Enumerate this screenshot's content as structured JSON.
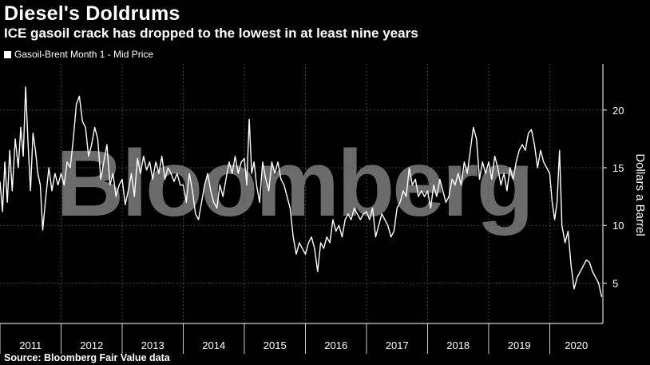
{
  "title": "Diesel's Doldrums",
  "subtitle": "ICE gasoil crack has dropped to the lowest in at least nine years",
  "source": "Source: Bloomberg Fair Value data",
  "watermark": "Bloomberg",
  "chart_data": {
    "type": "line",
    "title": "Diesel's Doldrums",
    "subtitle": "ICE gasoil crack has dropped to the lowest in at least nine years",
    "ylabel": "Dollars a Barrel",
    "xlabel": "",
    "ylim": [
      1.5,
      24
    ],
    "yticks": [
      5,
      10,
      15,
      20
    ],
    "xlim": [
      2011.0,
      2020.87
    ],
    "xticks": [
      "2011",
      "2012",
      "2013",
      "2014",
      "2015",
      "2016",
      "2017",
      "2018",
      "2019",
      "2020"
    ],
    "grid": true,
    "legend_position": "top-left",
    "colors": {
      "series": "#ffffff",
      "background": "#000000",
      "grid": "#555555"
    },
    "series": [
      {
        "name": "Gasoil-Brent Month 1 - Mid Price",
        "points": [
          [
            2011.0,
            13.8
          ],
          [
            2011.04,
            11.2
          ],
          [
            2011.08,
            15.5
          ],
          [
            2011.12,
            12.0
          ],
          [
            2011.16,
            16.5
          ],
          [
            2011.2,
            13.0
          ],
          [
            2011.25,
            17.5
          ],
          [
            2011.3,
            15.0
          ],
          [
            2011.34,
            18.5
          ],
          [
            2011.38,
            16.0
          ],
          [
            2011.42,
            22.0
          ],
          [
            2011.46,
            17.0
          ],
          [
            2011.5,
            13.0
          ],
          [
            2011.54,
            18.0
          ],
          [
            2011.58,
            16.5
          ],
          [
            2011.62,
            14.5
          ],
          [
            2011.66,
            13.5
          ],
          [
            2011.7,
            9.6
          ],
          [
            2011.75,
            12.5
          ],
          [
            2011.8,
            15.0
          ],
          [
            2011.85,
            13.0
          ],
          [
            2011.9,
            14.5
          ],
          [
            2011.95,
            13.5
          ],
          [
            2012.0,
            14.5
          ],
          [
            2012.05,
            13.5
          ],
          [
            2012.1,
            15.5
          ],
          [
            2012.15,
            15.0
          ],
          [
            2012.2,
            17.5
          ],
          [
            2012.25,
            20.5
          ],
          [
            2012.3,
            21.2
          ],
          [
            2012.35,
            19.0
          ],
          [
            2012.4,
            18.5
          ],
          [
            2012.45,
            16.0
          ],
          [
            2012.5,
            17.0
          ],
          [
            2012.55,
            18.5
          ],
          [
            2012.6,
            17.5
          ],
          [
            2012.65,
            14.0
          ],
          [
            2012.7,
            15.5
          ],
          [
            2012.75,
            17.0
          ],
          [
            2012.8,
            13.5
          ],
          [
            2012.85,
            14.5
          ],
          [
            2012.9,
            12.5
          ],
          [
            2012.95,
            13.5
          ],
          [
            2013.0,
            14.0
          ],
          [
            2013.05,
            11.8
          ],
          [
            2013.1,
            13.0
          ],
          [
            2013.15,
            14.5
          ],
          [
            2013.2,
            12.5
          ],
          [
            2013.25,
            15.8
          ],
          [
            2013.3,
            14.5
          ],
          [
            2013.35,
            16.0
          ],
          [
            2013.4,
            14.8
          ],
          [
            2013.45,
            15.5
          ],
          [
            2013.5,
            14.0
          ],
          [
            2013.55,
            15.5
          ],
          [
            2013.6,
            14.5
          ],
          [
            2013.65,
            16.0
          ],
          [
            2013.7,
            14.0
          ],
          [
            2013.75,
            15.0
          ],
          [
            2013.8,
            14.5
          ],
          [
            2013.85,
            13.8
          ],
          [
            2013.9,
            14.5
          ],
          [
            2013.95,
            13.5
          ],
          [
            2014.0,
            13.5
          ],
          [
            2014.05,
            12.0
          ],
          [
            2014.1,
            14.5
          ],
          [
            2014.15,
            13.0
          ],
          [
            2014.2,
            11.0
          ],
          [
            2014.25,
            10.5
          ],
          [
            2014.3,
            12.0
          ],
          [
            2014.35,
            13.5
          ],
          [
            2014.4,
            14.5
          ],
          [
            2014.45,
            13.0
          ],
          [
            2014.5,
            12.0
          ],
          [
            2014.55,
            11.5
          ],
          [
            2014.6,
            13.5
          ],
          [
            2014.65,
            12.5
          ],
          [
            2014.7,
            14.0
          ],
          [
            2014.75,
            15.5
          ],
          [
            2014.8,
            14.5
          ],
          [
            2014.85,
            16.0
          ],
          [
            2014.9,
            14.5
          ],
          [
            2014.95,
            15.5
          ],
          [
            2015.0,
            15.8
          ],
          [
            2015.04,
            13.5
          ],
          [
            2015.08,
            19.2
          ],
          [
            2015.12,
            14.5
          ],
          [
            2015.16,
            15.5
          ],
          [
            2015.2,
            13.5
          ],
          [
            2015.25,
            12.0
          ],
          [
            2015.3,
            15.5
          ],
          [
            2015.35,
            14.0
          ],
          [
            2015.4,
            13.0
          ],
          [
            2015.45,
            15.5
          ],
          [
            2015.5,
            14.5
          ],
          [
            2015.55,
            15.5
          ],
          [
            2015.6,
            14.0
          ],
          [
            2015.65,
            13.5
          ],
          [
            2015.7,
            12.5
          ],
          [
            2015.75,
            11.5
          ],
          [
            2015.8,
            9.0
          ],
          [
            2015.85,
            7.5
          ],
          [
            2015.9,
            8.5
          ],
          [
            2015.95,
            8.0
          ],
          [
            2016.0,
            7.5
          ],
          [
            2016.05,
            8.5
          ],
          [
            2016.1,
            9.0
          ],
          [
            2016.15,
            8.0
          ],
          [
            2016.2,
            6.0
          ],
          [
            2016.25,
            8.5
          ],
          [
            2016.3,
            8.0
          ],
          [
            2016.35,
            9.0
          ],
          [
            2016.4,
            8.5
          ],
          [
            2016.45,
            10.5
          ],
          [
            2016.5,
            9.5
          ],
          [
            2016.55,
            10.0
          ],
          [
            2016.6,
            9.0
          ],
          [
            2016.65,
            10.5
          ],
          [
            2016.7,
            11.0
          ],
          [
            2016.75,
            10.5
          ],
          [
            2016.8,
            11.5
          ],
          [
            2016.85,
            11.0
          ],
          [
            2016.9,
            10.5
          ],
          [
            2016.95,
            11.0
          ],
          [
            2017.0,
            11.2
          ],
          [
            2017.05,
            10.5
          ],
          [
            2017.1,
            11.5
          ],
          [
            2017.15,
            9.0
          ],
          [
            2017.2,
            10.0
          ],
          [
            2017.25,
            11.0
          ],
          [
            2017.3,
            10.5
          ],
          [
            2017.35,
            10.0
          ],
          [
            2017.4,
            9.0
          ],
          [
            2017.45,
            9.5
          ],
          [
            2017.5,
            11.5
          ],
          [
            2017.55,
            12.0
          ],
          [
            2017.6,
            13.0
          ],
          [
            2017.65,
            12.5
          ],
          [
            2017.7,
            15.0
          ],
          [
            2017.75,
            13.5
          ],
          [
            2017.8,
            14.0
          ],
          [
            2017.85,
            12.5
          ],
          [
            2017.9,
            13.0
          ],
          [
            2017.95,
            12.5
          ],
          [
            2018.0,
            13.0
          ],
          [
            2018.05,
            11.5
          ],
          [
            2018.1,
            13.5
          ],
          [
            2018.15,
            12.5
          ],
          [
            2018.2,
            14.0
          ],
          [
            2018.25,
            13.0
          ],
          [
            2018.3,
            12.0
          ],
          [
            2018.35,
            12.5
          ],
          [
            2018.4,
            14.0
          ],
          [
            2018.45,
            13.5
          ],
          [
            2018.5,
            14.5
          ],
          [
            2018.55,
            13.5
          ],
          [
            2018.6,
            15.5
          ],
          [
            2018.65,
            14.5
          ],
          [
            2018.7,
            16.5
          ],
          [
            2018.75,
            18.5
          ],
          [
            2018.8,
            17.5
          ],
          [
            2018.85,
            14.0
          ],
          [
            2018.9,
            15.5
          ],
          [
            2018.95,
            14.5
          ],
          [
            2019.0,
            15.5
          ],
          [
            2019.05,
            14.0
          ],
          [
            2019.1,
            16.0
          ],
          [
            2019.15,
            15.0
          ],
          [
            2019.2,
            13.5
          ],
          [
            2019.25,
            14.5
          ],
          [
            2019.3,
            13.0
          ],
          [
            2019.35,
            15.0
          ],
          [
            2019.4,
            14.0
          ],
          [
            2019.45,
            15.5
          ],
          [
            2019.5,
            16.5
          ],
          [
            2019.55,
            17.0
          ],
          [
            2019.6,
            16.5
          ],
          [
            2019.65,
            18.0
          ],
          [
            2019.7,
            18.3
          ],
          [
            2019.75,
            17.0
          ],
          [
            2019.8,
            15.0
          ],
          [
            2019.85,
            16.5
          ],
          [
            2019.9,
            15.5
          ],
          [
            2019.95,
            15.0
          ],
          [
            2020.0,
            14.5
          ],
          [
            2020.04,
            12.0
          ],
          [
            2020.08,
            10.5
          ],
          [
            2020.12,
            12.0
          ],
          [
            2020.16,
            16.5
          ],
          [
            2020.2,
            10.0
          ],
          [
            2020.25,
            8.5
          ],
          [
            2020.3,
            9.5
          ],
          [
            2020.35,
            6.5
          ],
          [
            2020.4,
            4.5
          ],
          [
            2020.45,
            5.5
          ],
          [
            2020.5,
            6.0
          ],
          [
            2020.55,
            6.5
          ],
          [
            2020.6,
            7.0
          ],
          [
            2020.65,
            6.8
          ],
          [
            2020.7,
            6.0
          ],
          [
            2020.75,
            5.5
          ],
          [
            2020.8,
            5.0
          ],
          [
            2020.85,
            3.8
          ]
        ]
      }
    ]
  }
}
